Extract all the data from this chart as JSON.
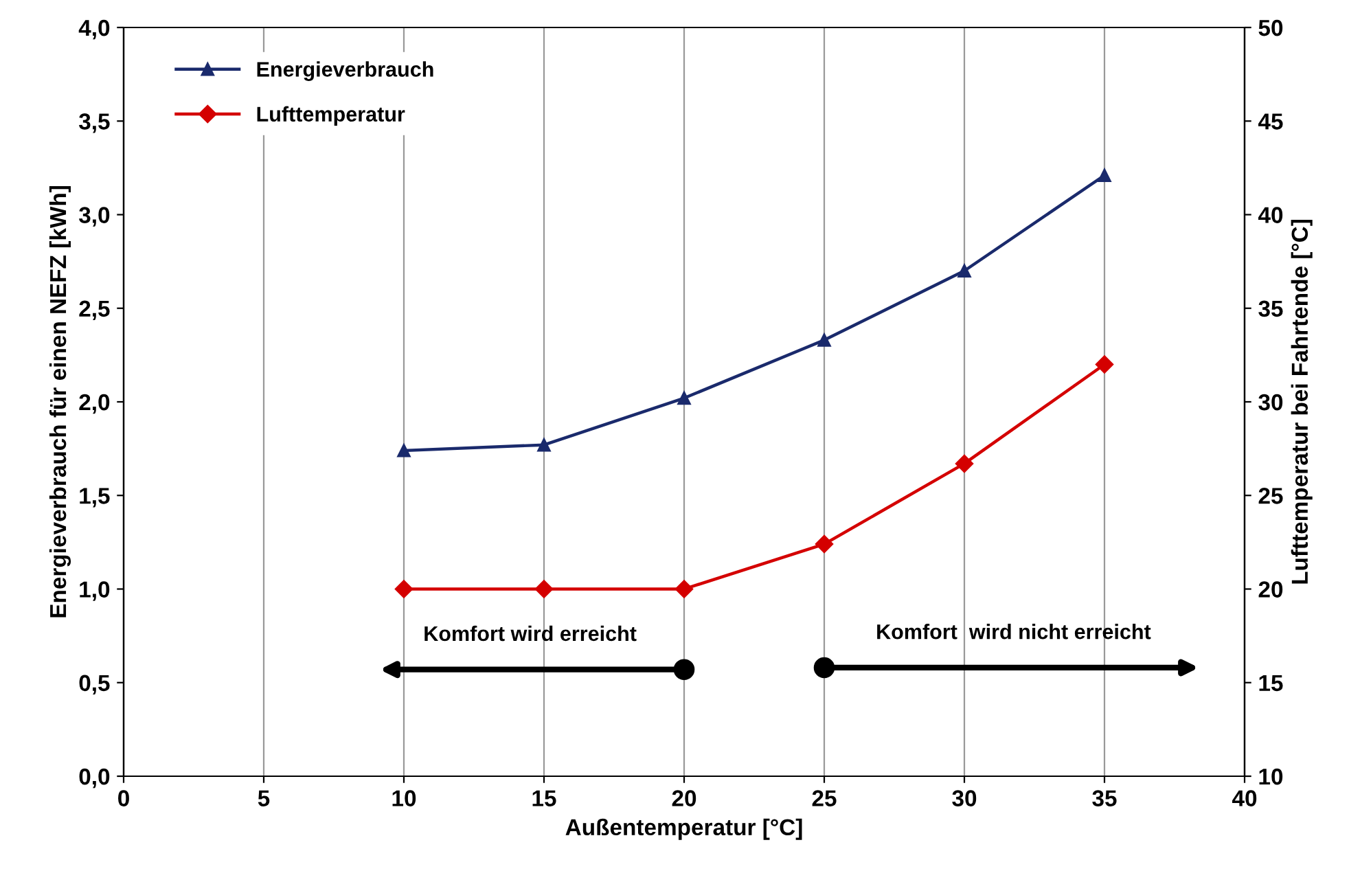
{
  "chart_data": {
    "type": "line",
    "xlabel": "Außentemperatur [°C]",
    "ylabel": "Energieverbrauch für einen NEFZ [kWh]",
    "y2label": "Lufttemperatur bei Fahrtende [°C]",
    "x": [
      10,
      15,
      20,
      25,
      30,
      35
    ],
    "series": [
      {
        "name": "Energieverbrauch",
        "color": "#1a2a6c",
        "marker": "triangle",
        "values": [
          1.74,
          1.77,
          2.02,
          2.33,
          2.7,
          3.21
        ]
      },
      {
        "name": "Lufttemperatur",
        "color": "#d40000",
        "marker": "diamond",
        "axis": "y2",
        "values": [
          20,
          20,
          20,
          22.4,
          26.7,
          32
        ]
      }
    ],
    "xlim": [
      0,
      40
    ],
    "xticks": [
      0,
      5,
      10,
      15,
      20,
      25,
      30,
      35,
      40
    ],
    "ylim": [
      0,
      4
    ],
    "yticks": [
      {
        "value": 0,
        "label": "0,0"
      },
      {
        "value": 0.5,
        "label": "0,5"
      },
      {
        "value": 1,
        "label": "1,0"
      },
      {
        "value": 1.5,
        "label": "1,5"
      },
      {
        "value": 2,
        "label": "2,0"
      },
      {
        "value": 2.5,
        "label": "2,5"
      },
      {
        "value": 3,
        "label": "3,0"
      },
      {
        "value": 3.5,
        "label": "3,5"
      },
      {
        "value": 4,
        "label": "4,0"
      }
    ],
    "y2lim": [
      10,
      50
    ],
    "y2ticks": [
      10,
      15,
      20,
      25,
      30,
      35,
      40,
      45,
      50
    ],
    "grid": "x",
    "legend": "top left",
    "line_style": "solid",
    "annotations": [
      {
        "text": "Komfort wird erreicht",
        "x": 20,
        "y": 0.57
      },
      {
        "text": "Komfort  wird nicht erreicht",
        "x": 25,
        "y": 0.58
      }
    ]
  }
}
